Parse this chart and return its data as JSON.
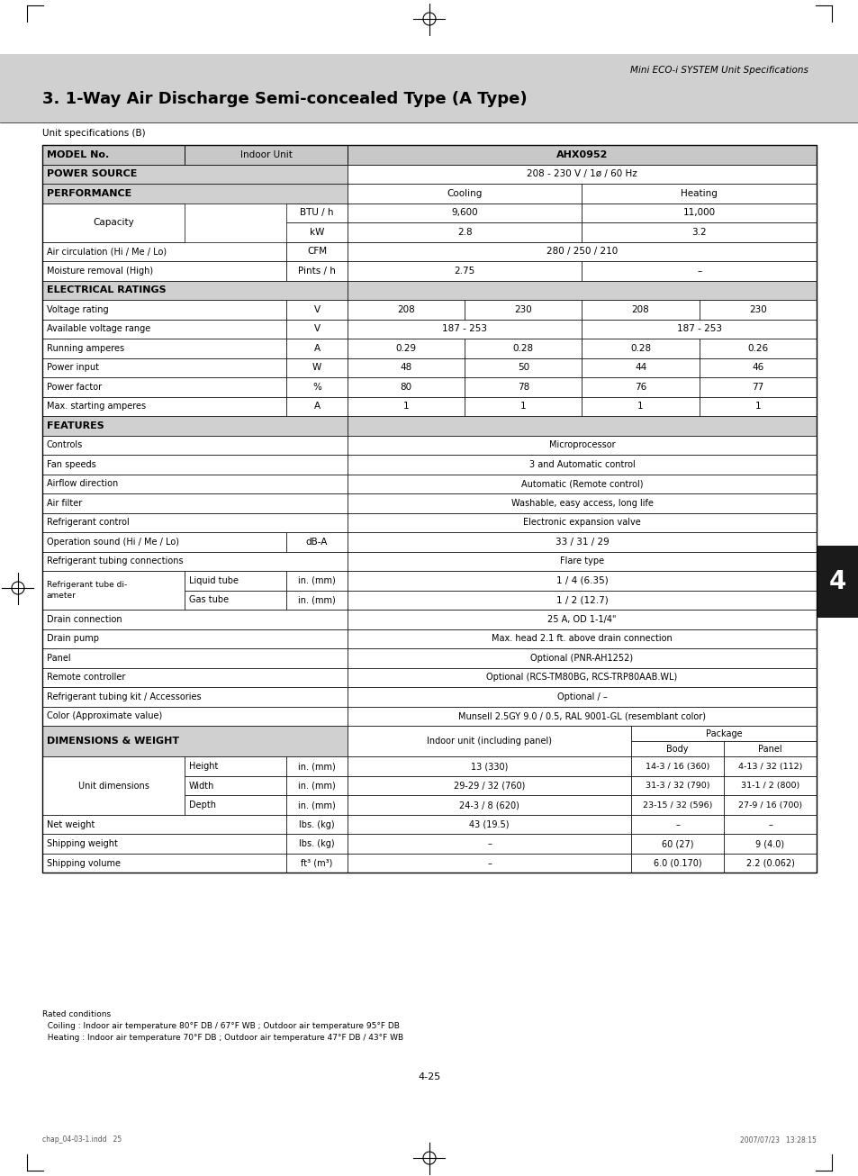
{
  "page_title": "Mini ECO-i SYSTEM Unit Specifications",
  "section_title": "3. 1-Way Air Discharge Semi-concealed Type (A Type)",
  "table_title": "Unit specifications (B)",
  "model": "AHX0952",
  "background_color": "#ffffff",
  "section_bg": "#d0d0d0",
  "white": "#ffffff",
  "dark": "#000000",
  "gray_banner": "#d0d0d0",
  "page_number": "4-25",
  "footer_line1": "Rated conditions",
  "footer_line2": "  Coiling : Indoor air temperature 80°F DB / 67°F WB ; Outdoor air temperature 95°F DB",
  "footer_line3": "  Heating : Indoor air temperature 70°F DB ; Outdoor air temperature 47°F DB / 43°F WB",
  "bottom_left": "chap_04-03-1.indd   25",
  "bottom_right": "2007/07/23   13:28:15"
}
